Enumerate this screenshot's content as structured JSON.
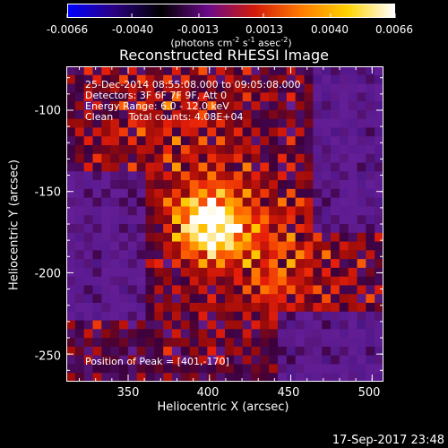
{
  "title": "Reconstructed RHESSI Image",
  "colorbar": {
    "tick_labels": [
      "-0.0066",
      "-0.0040",
      "-0.0013",
      "0.0013",
      "0.0040",
      "0.0066"
    ],
    "tick_values": [
      -0.0066,
      -0.004,
      -0.0013,
      0.0013,
      0.004,
      0.0066
    ],
    "range": [
      -0.0066,
      0.0066
    ],
    "unit_prefix": "(photons cm",
    "unit_exp1": "-2",
    "unit_mid1": " s",
    "unit_exp2": "-1",
    "unit_mid2": " asec",
    "unit_exp3": "-2",
    "unit_suffix": ")",
    "colors": [
      "#0000ff",
      "#2a0080",
      "#000000",
      "#6a0a8a",
      "#d11a0a",
      "#ff7a00",
      "#ffd200",
      "#ffffff"
    ]
  },
  "info": {
    "line1": "25-Dec-2014 08:55:08.000 to 09:05:08.000",
    "line2": "Detectors: 3F 6F 7F 9F, Att 0",
    "line3": "Energy Range: 6.0 - 12.0 keV",
    "line4": "Clean     Total counts: 4.08E+04",
    "peak": "Position of Peak = [401,-170]"
  },
  "axes": {
    "xlabel": "Heliocentric X (arcsec)",
    "ylabel": "Heliocentric Y (arcsec)",
    "xticks": [
      "350",
      "400",
      "450",
      "500"
    ],
    "xtick_values": [
      350,
      400,
      450,
      500
    ],
    "yticks": [
      "-100",
      "-150",
      "-200",
      "-250"
    ],
    "ytick_values": [
      -100,
      -150,
      -200,
      -250
    ],
    "xlim": [
      312,
      507
    ],
    "ylim": [
      -267,
      -73
    ]
  },
  "chart_data": {
    "type": "heatmap",
    "title": "Reconstructed RHESSI Image",
    "xlabel": "Heliocentric X (arcsec)",
    "ylabel": "Heliocentric Y (arcsec)",
    "xlim": [
      312,
      507
    ],
    "ylim": [
      -267,
      -73
    ],
    "peak_position": [
      401,
      -170
    ],
    "value_range": [
      -0.0066,
      0.0066
    ],
    "colormap": "rhessi-diverging"
  },
  "footer": {
    "timestamp": "17-Sep-2017 23:48"
  }
}
